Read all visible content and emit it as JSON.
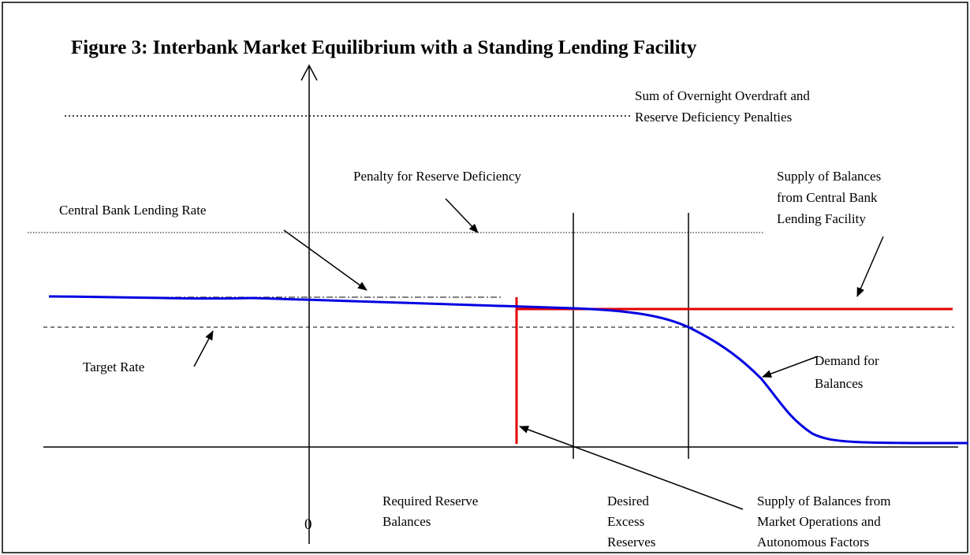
{
  "title": "Figure 3:  Interbank Market Equilibrium with a Standing Lending Facility",
  "labels": {
    "penalty_sum": [
      "Sum of Overnight Overdraft and",
      "Reserve Deficiency Penalties"
    ],
    "penalty_deficiency": "Penalty for Reserve Deficiency",
    "supply_lending": [
      "Supply of Balances",
      "from Central Bank",
      "Lending Facility"
    ],
    "lending_rate": "Central Bank Lending Rate",
    "target_rate": "Target Rate",
    "demand": [
      "Demand for",
      "Balances"
    ],
    "zero": "0",
    "required_reserve": [
      "Required Reserve",
      "Balances"
    ],
    "desired_excess": [
      "Desired",
      "Excess",
      "Reserves"
    ],
    "supply_market": [
      "Supply of Balances from",
      "Market Operations and",
      "Autonomous Factors"
    ]
  }
}
